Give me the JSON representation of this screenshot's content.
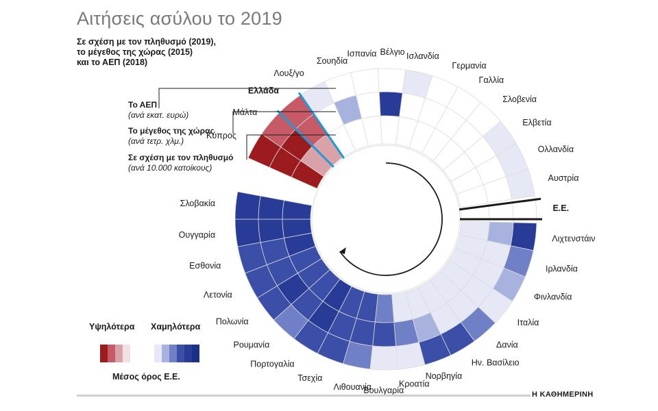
{
  "title": "Αιτήσεις ασύλου το 2019",
  "subtitle": [
    "Σε σχέση με τον πληθυσμό (2019),",
    "το μέγεθος της χώρας (2015)",
    "και το ΑΕΠ (2018)"
  ],
  "ring_labels": [
    {
      "name": "Το ΑΕΠ",
      "unit": "(ανά εκατ. ευρώ)"
    },
    {
      "name": "Το μέγεθος της χώρας",
      "unit": "(ανά τετρ. χλμ.)"
    },
    {
      "name": "Σε σχέση με τον πληθυσμό",
      "unit": "(ανά 10.000 κατοίκους)"
    }
  ],
  "legend": {
    "higher": "Υψηλότερα",
    "lower": "Χαμηλότερα",
    "average": "Μέσος όρος Ε.Ε."
  },
  "colors": {
    "high3": "#9b1b1f",
    "high2": "#c65a66",
    "high1": "#d9a2a8",
    "high0": "#f2e0e3",
    "avg": "#ffffff",
    "low0": "#e6e9f5",
    "low1": "#a7b2df",
    "low2": "#6f80c6",
    "low3": "#3b4fa8",
    "low4": "#283b96",
    "low5": "#1b2f86",
    "greece_marker": "#1e9bd7",
    "separator": "#1a1a1a",
    "grid": "#dcdcdc"
  },
  "footer": "Η ΚΑΘΗΜΕΡΙΝΗ",
  "chart_data": {
    "type": "radial-heatmap",
    "title": "Αιτήσεις ασύλου το 2019",
    "rings": [
      "Σε σχέση με τον πληθυσμό",
      "Το μέγεθος της χώρας",
      "Το ΑΕΠ"
    ],
    "scale_note": "positive = υψηλότερα από μέσο όρο Ε.Ε., negative = χαμηλότερα (levels -5..3)",
    "countries": [
      {
        "name": "Κύπρος",
        "values": [
          3,
          3,
          3
        ]
      },
      {
        "name": "Μάλτα",
        "values": [
          1,
          3,
          2
        ]
      },
      {
        "name": "Ελλάδα",
        "values": [
          1,
          2,
          2
        ],
        "highlight": true
      },
      {
        "name": "Λουξ/γο",
        "values": [
          0,
          0,
          -1
        ]
      },
      {
        "name": "Σουηδία",
        "values": [
          0,
          -2,
          0
        ]
      },
      {
        "name": "Ισπανία",
        "values": [
          0,
          0,
          0
        ]
      },
      {
        "name": "Βέλγιο",
        "values": [
          0,
          -5,
          0
        ]
      },
      {
        "name": "Ισλανδία",
        "values": [
          0,
          0,
          -1
        ]
      },
      {
        "name": "Γερμανία",
        "values": [
          0,
          0,
          0
        ]
      },
      {
        "name": "Γαλλία",
        "values": [
          0,
          0,
          0
        ]
      },
      {
        "name": "Σλοβενία",
        "values": [
          0,
          0,
          0
        ]
      },
      {
        "name": "Ελβετία",
        "values": [
          0,
          0,
          -1
        ]
      },
      {
        "name": "Ολλανδία",
        "values": [
          0,
          0,
          -1
        ]
      },
      {
        "name": "Αυστρία",
        "values": [
          0,
          0,
          -1
        ]
      },
      {
        "name": "Ε.Ε.",
        "values": [
          0,
          0,
          0
        ],
        "is_average": true
      },
      {
        "name": "Λιχτενστάιν",
        "values": [
          -1,
          -2,
          -5
        ]
      },
      {
        "name": "Ιρλανδία",
        "values": [
          -1,
          -1,
          -3
        ]
      },
      {
        "name": "Φινλανδία",
        "values": [
          -1,
          -1,
          -2
        ]
      },
      {
        "name": "Ιταλία",
        "values": [
          -1,
          -1,
          -1
        ]
      },
      {
        "name": "Δανία",
        "values": [
          -1,
          -1,
          -3
        ]
      },
      {
        "name": "Ην. Βασίλειο",
        "values": [
          -1,
          -1,
          -4
        ]
      },
      {
        "name": "Νορβηγία",
        "values": [
          -1,
          -2,
          -4
        ]
      },
      {
        "name": "Κροατία",
        "values": [
          -1,
          -3,
          -1
        ]
      },
      {
        "name": "Βουλγαρία",
        "values": [
          -3,
          -4,
          -1
        ]
      },
      {
        "name": "Λιθουανία",
        "values": [
          -4,
          -4,
          -3
        ]
      },
      {
        "name": "Τσεχία",
        "values": [
          -4,
          -4,
          -4
        ]
      },
      {
        "name": "Πορτογαλία",
        "values": [
          -5,
          -5,
          -4
        ]
      },
      {
        "name": "Ρουμανία",
        "values": [
          -4,
          -4,
          -3
        ]
      },
      {
        "name": "Πολωνία",
        "values": [
          -4,
          -5,
          -4
        ]
      },
      {
        "name": "Λετονία",
        "values": [
          -4,
          -4,
          -4
        ]
      },
      {
        "name": "Εσθονία",
        "values": [
          -5,
          -4,
          -4
        ]
      },
      {
        "name": "Ουγγαρία",
        "values": [
          -5,
          -5,
          -5
        ]
      },
      {
        "name": "Σλοβακία",
        "values": [
          -5,
          -5,
          -5
        ]
      }
    ]
  }
}
